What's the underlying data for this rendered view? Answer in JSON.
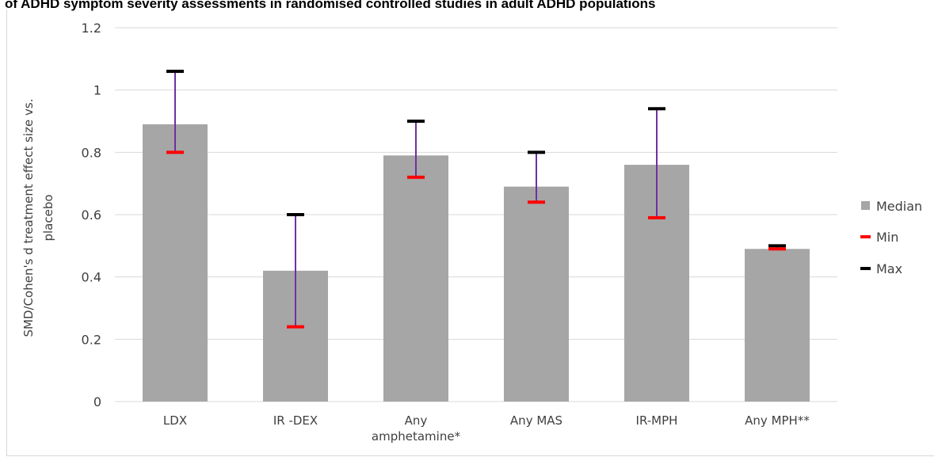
{
  "chart_data": {
    "type": "bar",
    "title": "of ADHD symptom severity assessments in randomised controlled studies in adult ADHD populations",
    "xlabel": "",
    "ylabel_lines": [
      "SMD/Cohen's d treatment effect size vs.",
      "placebo"
    ],
    "ylim": [
      0,
      1.2
    ],
    "yticks": [
      0,
      0.2,
      0.4,
      0.6,
      0.8,
      1,
      1.2
    ],
    "ytick_labels": [
      "0",
      "0.2",
      "0.4",
      "0.6",
      "0.8",
      "1",
      "1.2"
    ],
    "grid": true,
    "legend_position": "right",
    "categories": [
      [
        "LDX"
      ],
      [
        "IR -DEX"
      ],
      [
        "Any",
        "amphetamine*"
      ],
      [
        "Any MAS"
      ],
      [
        "IR-MPH"
      ],
      [
        "Any MPH**"
      ]
    ],
    "series": [
      {
        "name": "Median",
        "values": [
          0.89,
          0.42,
          0.79,
          0.69,
          0.76,
          0.49
        ],
        "color": "#a6a6a6"
      },
      {
        "name": "Min",
        "values": [
          0.8,
          0.24,
          0.72,
          0.64,
          0.59,
          0.49
        ],
        "color": "#ff0000"
      },
      {
        "name": "Max",
        "values": [
          1.06,
          0.6,
          0.9,
          0.8,
          0.94,
          0.5
        ],
        "color": "#000000"
      }
    ],
    "range_line_color": "#7030a0"
  }
}
